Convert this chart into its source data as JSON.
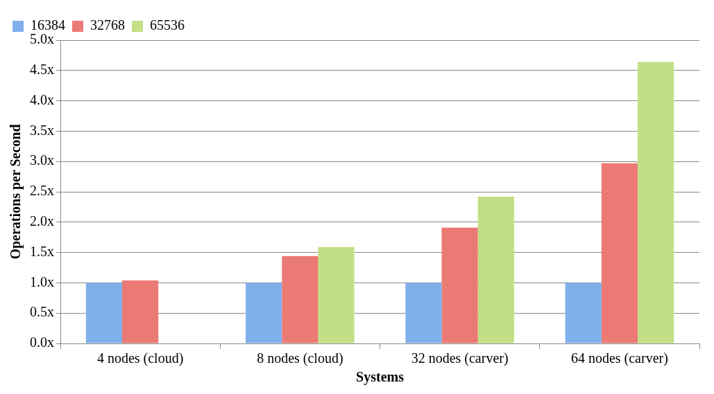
{
  "chart_data": {
    "type": "bar",
    "xlabel": "Systems",
    "ylabel": "Operations per Second",
    "categories": [
      "4 nodes (cloud)",
      "8 nodes (cloud)",
      "32 nodes (carver)",
      "64 nodes (carver)"
    ],
    "series": [
      {
        "name": "16384",
        "color": "#7fb0ec",
        "values": [
          1.0,
          1.0,
          1.0,
          1.0
        ]
      },
      {
        "name": "32768",
        "color": "#ec7a74",
        "values": [
          1.04,
          1.44,
          1.91,
          2.97
        ]
      },
      {
        "name": "65536",
        "color": "#c2df86",
        "values": [
          null,
          1.59,
          2.42,
          4.64
        ]
      }
    ],
    "ylim": [
      0,
      5
    ],
    "yticks": [
      {
        "value": 0,
        "label": "0.0x"
      },
      {
        "value": 0.5,
        "label": "0.5x"
      },
      {
        "value": 1,
        "label": "1.0x"
      },
      {
        "value": 1.5,
        "label": "1.5x"
      },
      {
        "value": 2,
        "label": "2.0x"
      },
      {
        "value": 2.5,
        "label": "2.5x"
      },
      {
        "value": 3,
        "label": "3.0x"
      },
      {
        "value": 3.5,
        "label": "3.5x"
      },
      {
        "value": 4,
        "label": "4.0x"
      },
      {
        "value": 4.5,
        "label": "4.5x"
      },
      {
        "value": 5,
        "label": "5.0x"
      }
    ],
    "grid": "y",
    "legend": "top left"
  }
}
